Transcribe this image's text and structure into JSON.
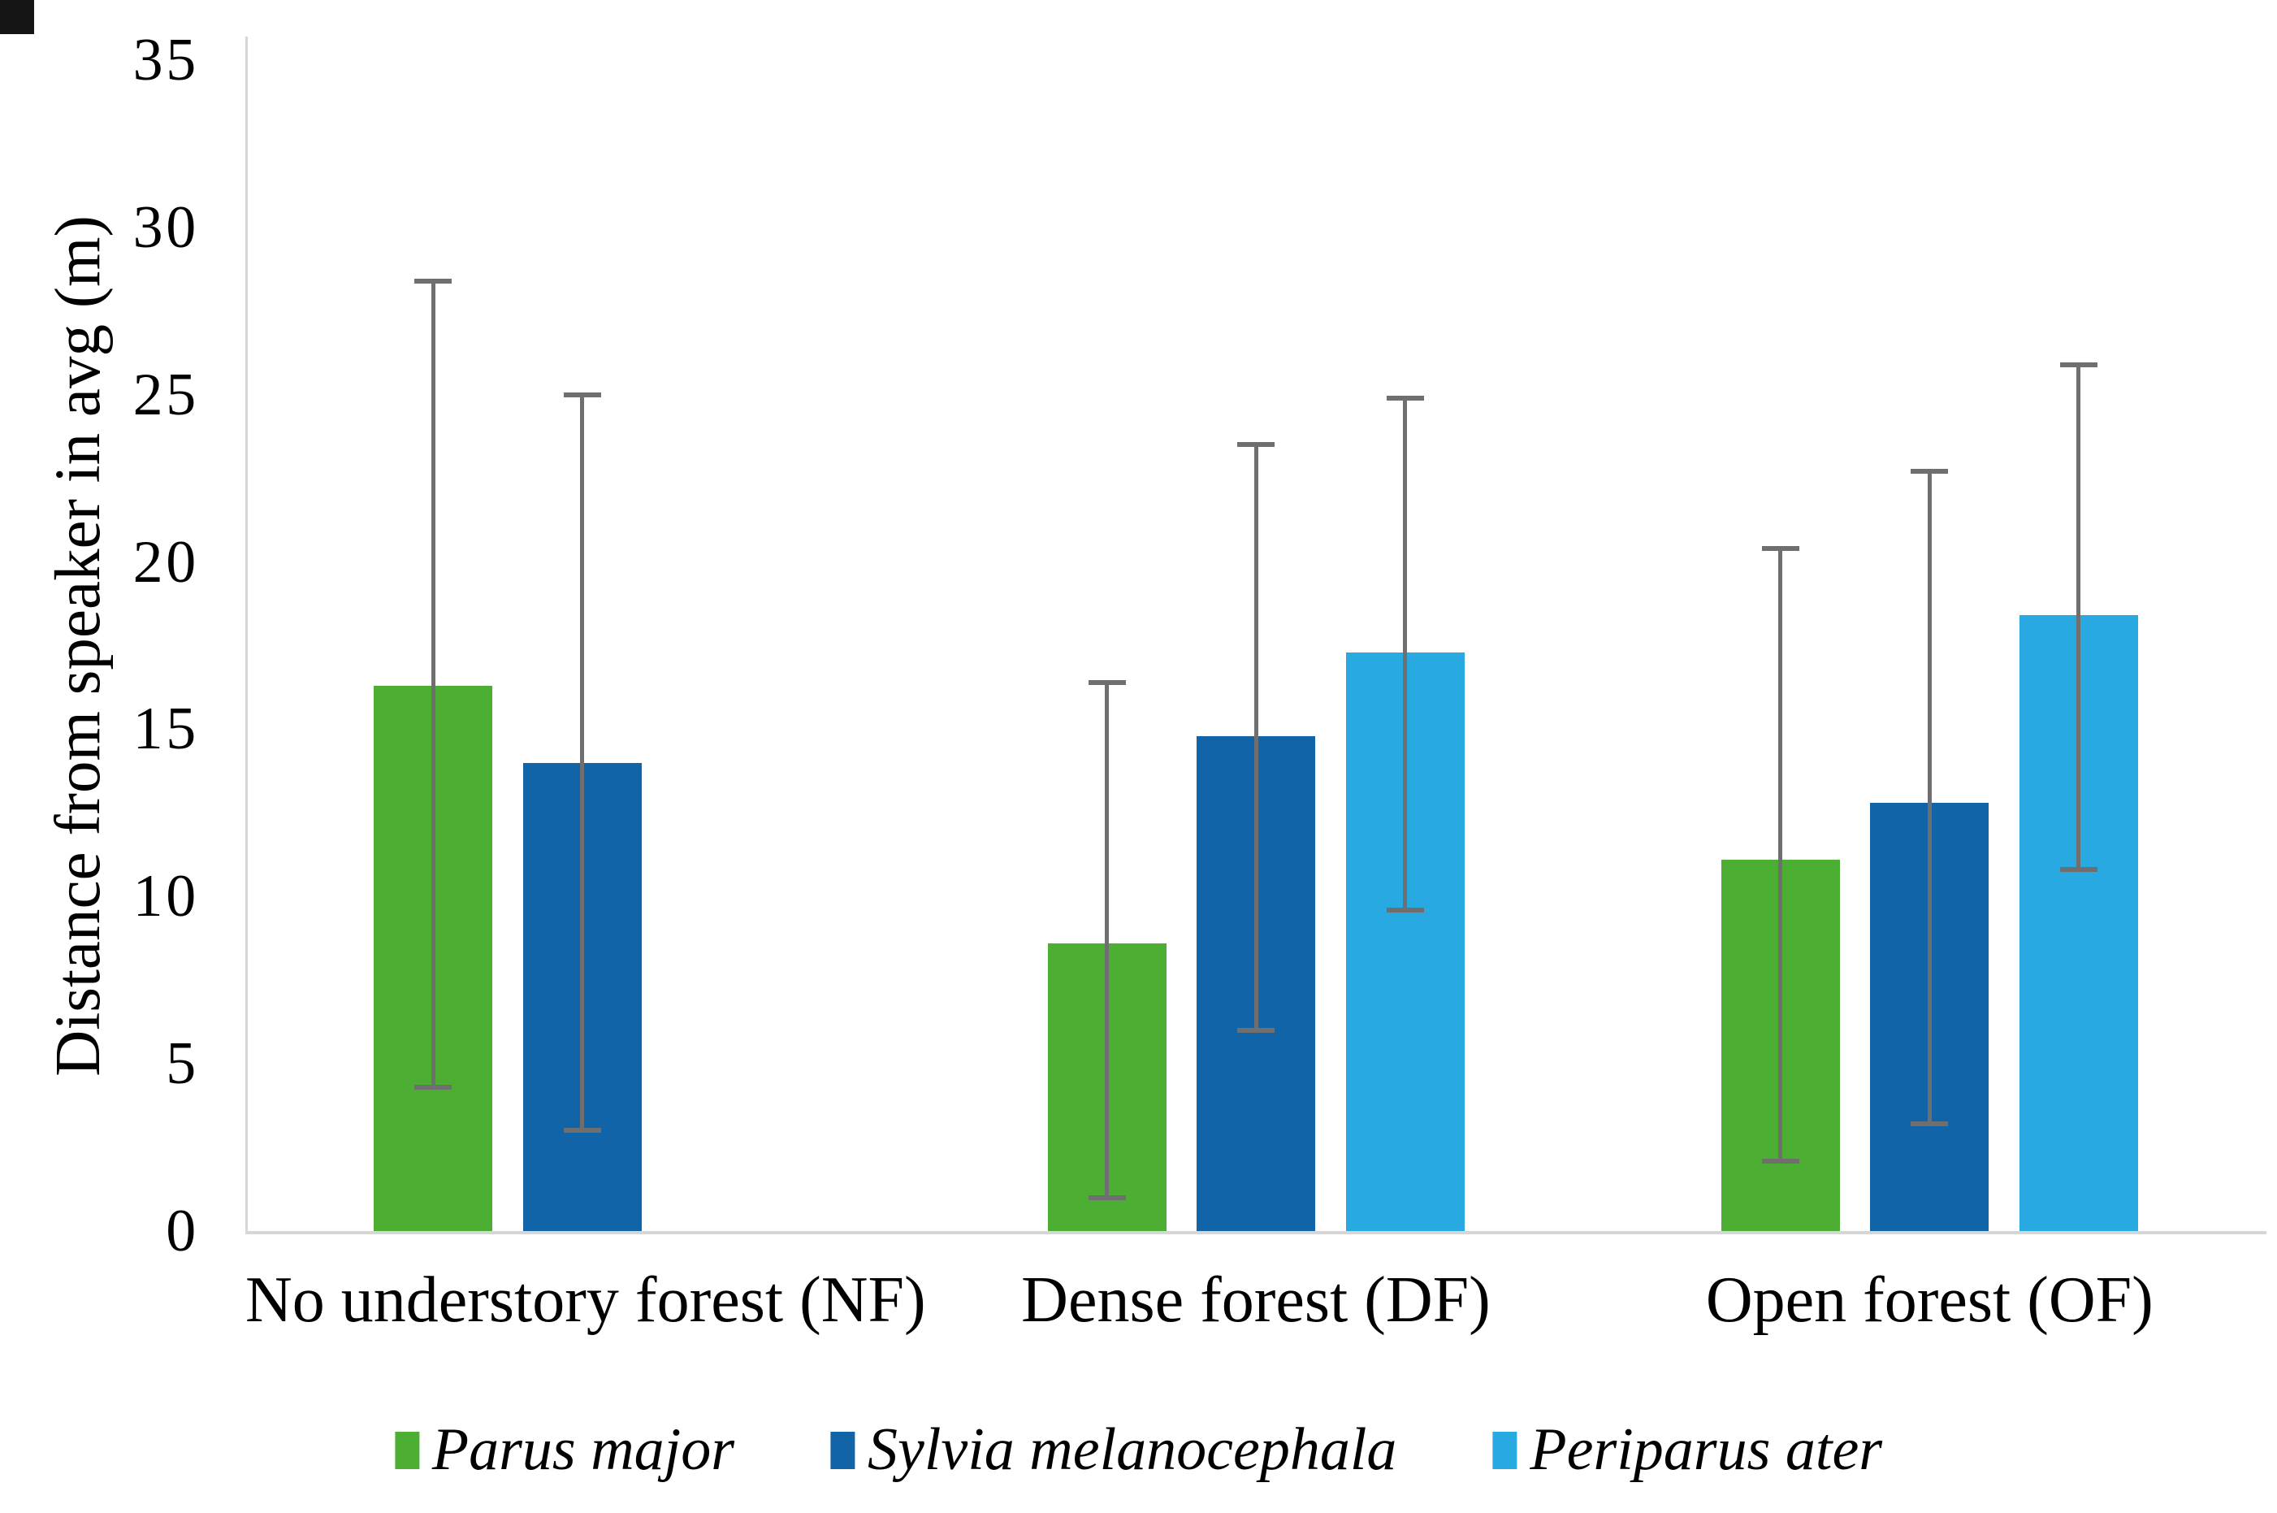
{
  "chart_data": {
    "type": "bar",
    "title": "",
    "ylabel": "Distance from speaker in avg (m)",
    "xlabel": "",
    "ylim": [
      0,
      35
    ],
    "yticks": [
      0,
      5,
      10,
      15,
      20,
      25,
      30,
      35
    ],
    "grid": false,
    "legend_position": "bottom",
    "categories": [
      "No understory forest (NF)",
      "Dense forest (DF)",
      "Open forest (OF)"
    ],
    "series": [
      {
        "name": "Parus major",
        "color": "#4CAE32",
        "values": [
          16.3,
          8.6,
          11.1
        ],
        "error_high": [
          28.4,
          16.4,
          20.4
        ],
        "error_low": [
          4.3,
          1.0,
          2.1
        ]
      },
      {
        "name": "Sylvia melanocephala",
        "color": "#1164A8",
        "values": [
          14.0,
          14.8,
          12.8
        ],
        "error_high": [
          25.0,
          23.5,
          22.7
        ],
        "error_low": [
          3.0,
          6.0,
          3.2
        ]
      },
      {
        "name": "Periparus ater",
        "color": "#29A9E1",
        "values": [
          null,
          17.3,
          18.4
        ],
        "error_high": [
          null,
          24.9,
          25.9
        ],
        "error_low": [
          null,
          9.6,
          10.8
        ]
      }
    ],
    "error_bar_color": "#6f6f6f",
    "axis_line_color": "#d6d6d6",
    "text_color": "#000000"
  }
}
